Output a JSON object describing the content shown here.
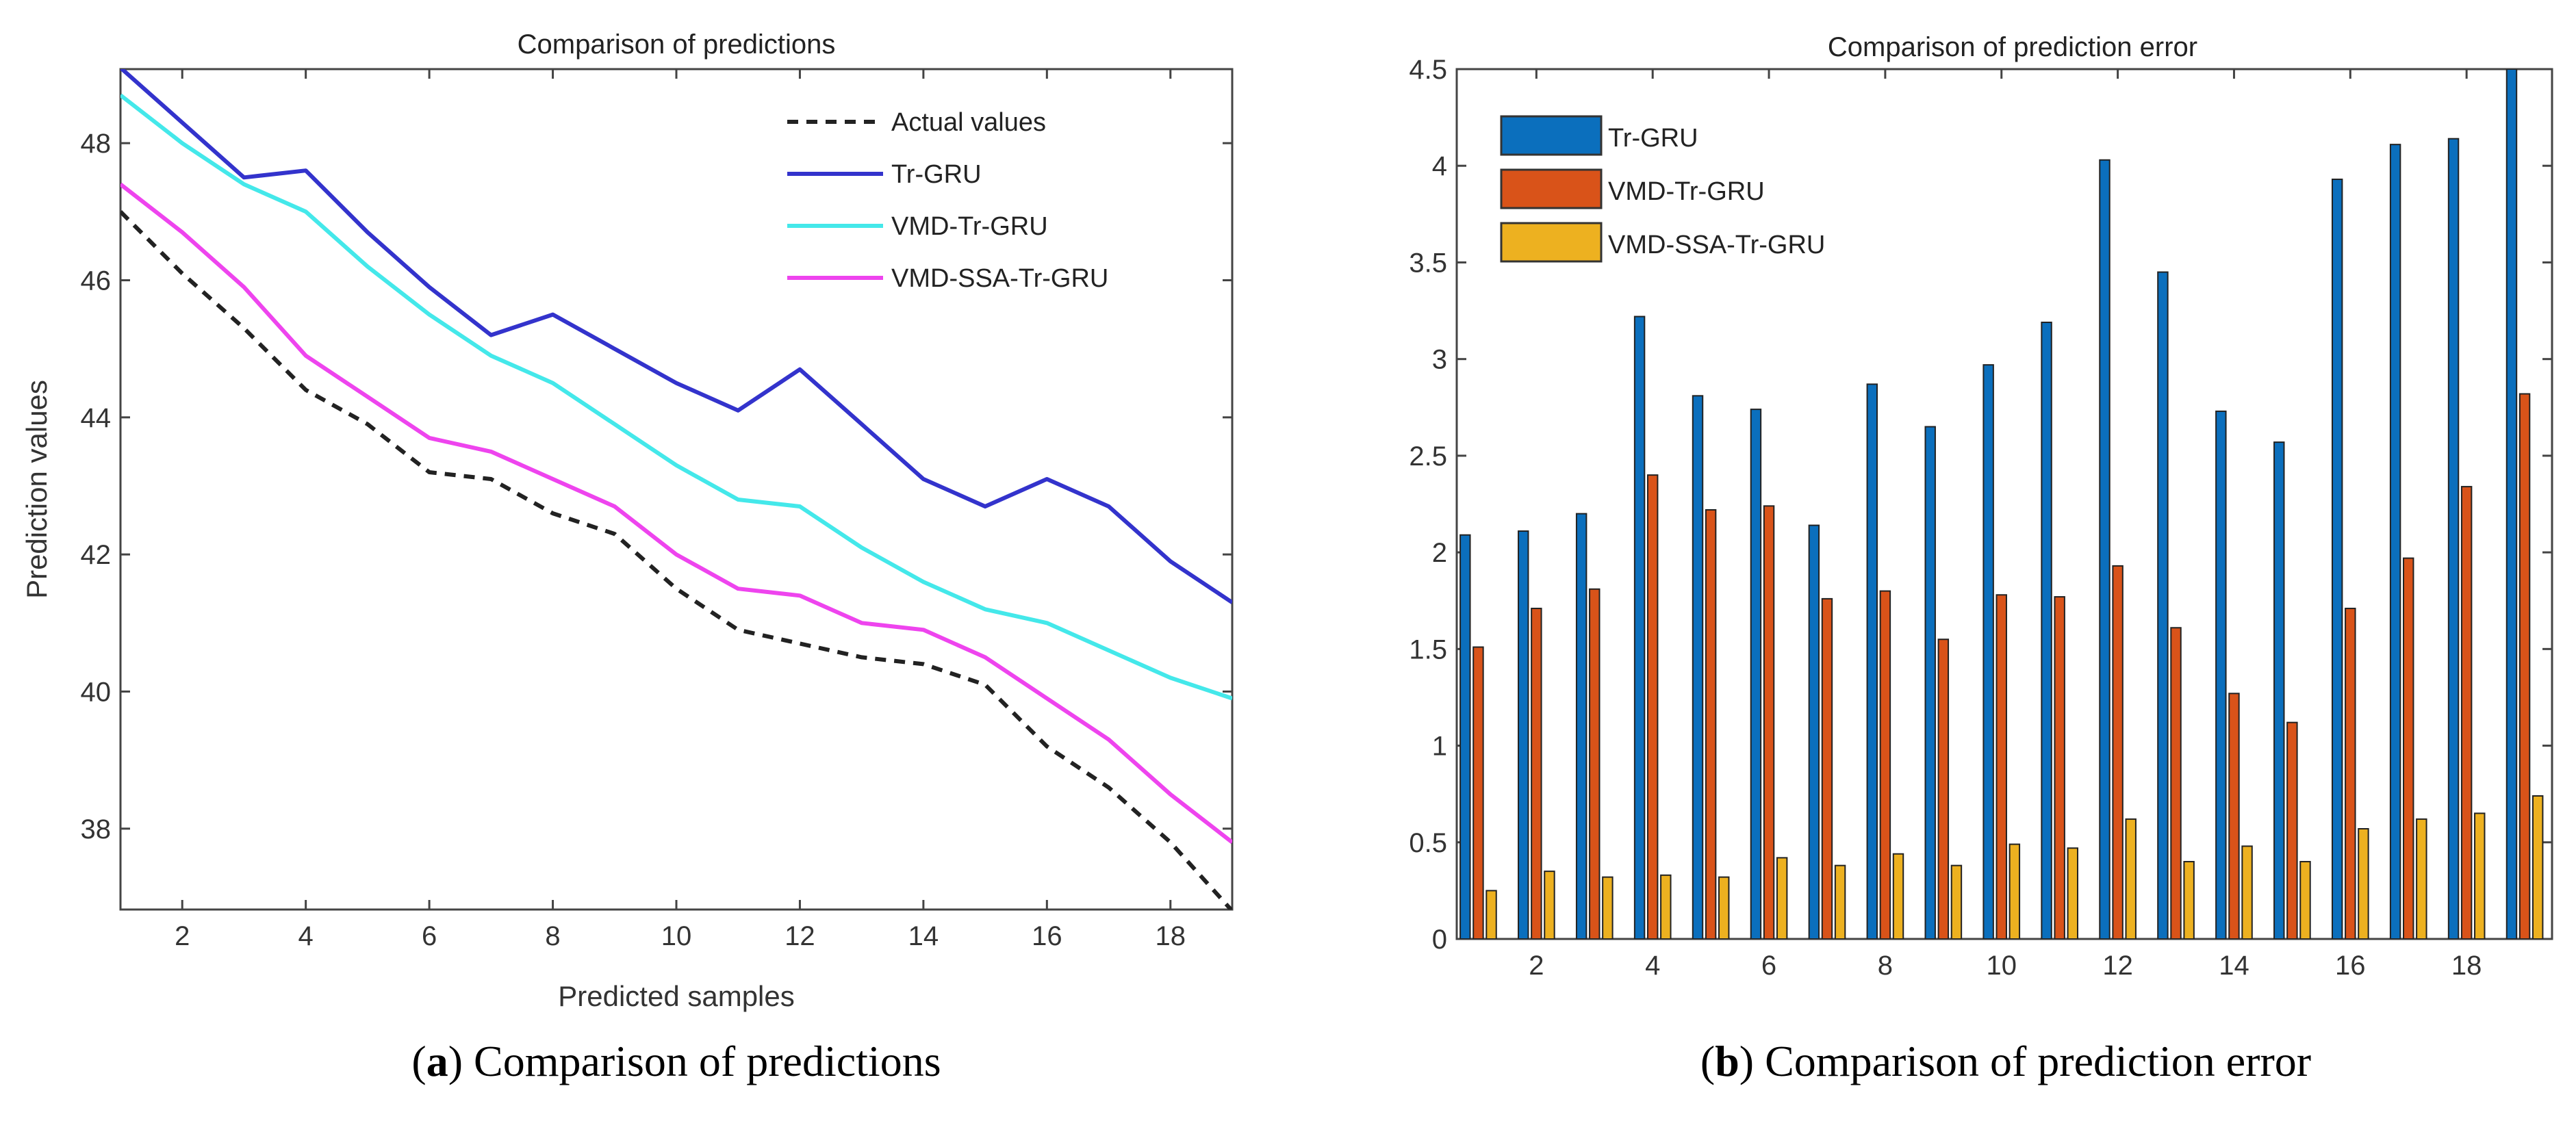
{
  "chart_data": [
    {
      "type": "line",
      "title": "Comparison of predictions",
      "xlabel": "Predicted samples",
      "ylabel": "Prediction values",
      "caption_letter": "a",
      "caption_text": " Comparison of predictions",
      "xlim": [
        1,
        19
      ],
      "ylim": [
        36.82,
        49.08
      ],
      "xticks": [
        2,
        4,
        6,
        8,
        10,
        12,
        14,
        16,
        18
      ],
      "yticks": [
        38,
        40,
        42,
        44,
        46,
        48
      ],
      "legend": "top-right",
      "x": [
        1,
        2,
        3,
        4,
        5,
        6,
        7,
        8,
        9,
        10,
        11,
        12,
        13,
        14,
        15,
        16,
        17,
        18,
        19
      ],
      "series": [
        {
          "name": "Actual values",
          "color": "#222222",
          "dashed": true,
          "values": [
            47.0,
            46.1,
            45.3,
            44.4,
            43.9,
            43.2,
            43.1,
            42.6,
            42.3,
            41.5,
            40.9,
            40.7,
            40.5,
            40.4,
            40.1,
            39.2,
            38.6,
            37.8,
            36.8
          ]
        },
        {
          "name": "Tr-GRU",
          "color": "#3333cc",
          "dashed": false,
          "values": [
            49.1,
            48.3,
            47.5,
            47.6,
            46.7,
            45.9,
            45.2,
            45.5,
            45.0,
            44.5,
            44.1,
            44.7,
            43.9,
            43.1,
            42.7,
            43.1,
            42.7,
            41.9,
            41.3
          ]
        },
        {
          "name": "VMD-Tr-GRU",
          "color": "#44e8ea",
          "dashed": false,
          "values": [
            48.7,
            48.0,
            47.4,
            47.0,
            46.2,
            45.5,
            44.9,
            44.5,
            43.9,
            43.3,
            42.8,
            42.7,
            42.1,
            41.6,
            41.2,
            41.0,
            40.6,
            40.2,
            39.9
          ]
        },
        {
          "name": "VMD-SSA-Tr-GRU",
          "color": "#ee44ee",
          "dashed": false,
          "values": [
            47.4,
            46.7,
            45.9,
            44.9,
            44.3,
            43.7,
            43.5,
            43.1,
            42.7,
            42.0,
            41.5,
            41.4,
            41.0,
            40.9,
            40.5,
            39.9,
            39.3,
            38.5,
            37.8
          ]
        }
      ]
    },
    {
      "type": "bar",
      "title": "Comparison of prediction error",
      "xlabel": "",
      "ylabel": "",
      "caption_letter": "b",
      "caption_text": " Comparison of prediction error",
      "xlim": [
        0.63,
        19.47
      ],
      "ylim": [
        0,
        4.5
      ],
      "xticks": [
        2,
        4,
        6,
        8,
        10,
        12,
        14,
        16,
        18
      ],
      "yticks": [
        0,
        0.5,
        1,
        1.5,
        2,
        2.5,
        3,
        3.5,
        4,
        4.5
      ],
      "legend": "top-left",
      "categories": [
        1,
        2,
        3,
        4,
        5,
        6,
        7,
        8,
        9,
        10,
        11,
        12,
        13,
        14,
        15,
        16,
        17,
        18,
        19
      ],
      "series": [
        {
          "name": "Tr-GRU",
          "color": "#0b6fbd",
          "values": [
            2.09,
            2.11,
            2.2,
            3.22,
            2.81,
            2.74,
            2.14,
            2.87,
            2.65,
            2.97,
            3.19,
            4.03,
            3.45,
            2.73,
            2.57,
            3.93,
            4.11,
            4.14,
            4.6
          ]
        },
        {
          "name": "VMD-Tr-GRU",
          "color": "#d95319",
          "values": [
            1.51,
            1.71,
            1.81,
            2.4,
            2.22,
            2.24,
            1.76,
            1.8,
            1.55,
            1.78,
            1.77,
            1.93,
            1.61,
            1.27,
            1.12,
            1.71,
            1.97,
            2.34,
            2.82
          ]
        },
        {
          "name": "VMD-SSA-Tr-GRU",
          "color": "#edb120",
          "values": [
            0.25,
            0.35,
            0.32,
            0.33,
            0.32,
            0.42,
            0.38,
            0.44,
            0.38,
            0.49,
            0.47,
            0.62,
            0.4,
            0.48,
            0.4,
            0.57,
            0.62,
            0.65,
            0.74
          ]
        }
      ]
    }
  ]
}
